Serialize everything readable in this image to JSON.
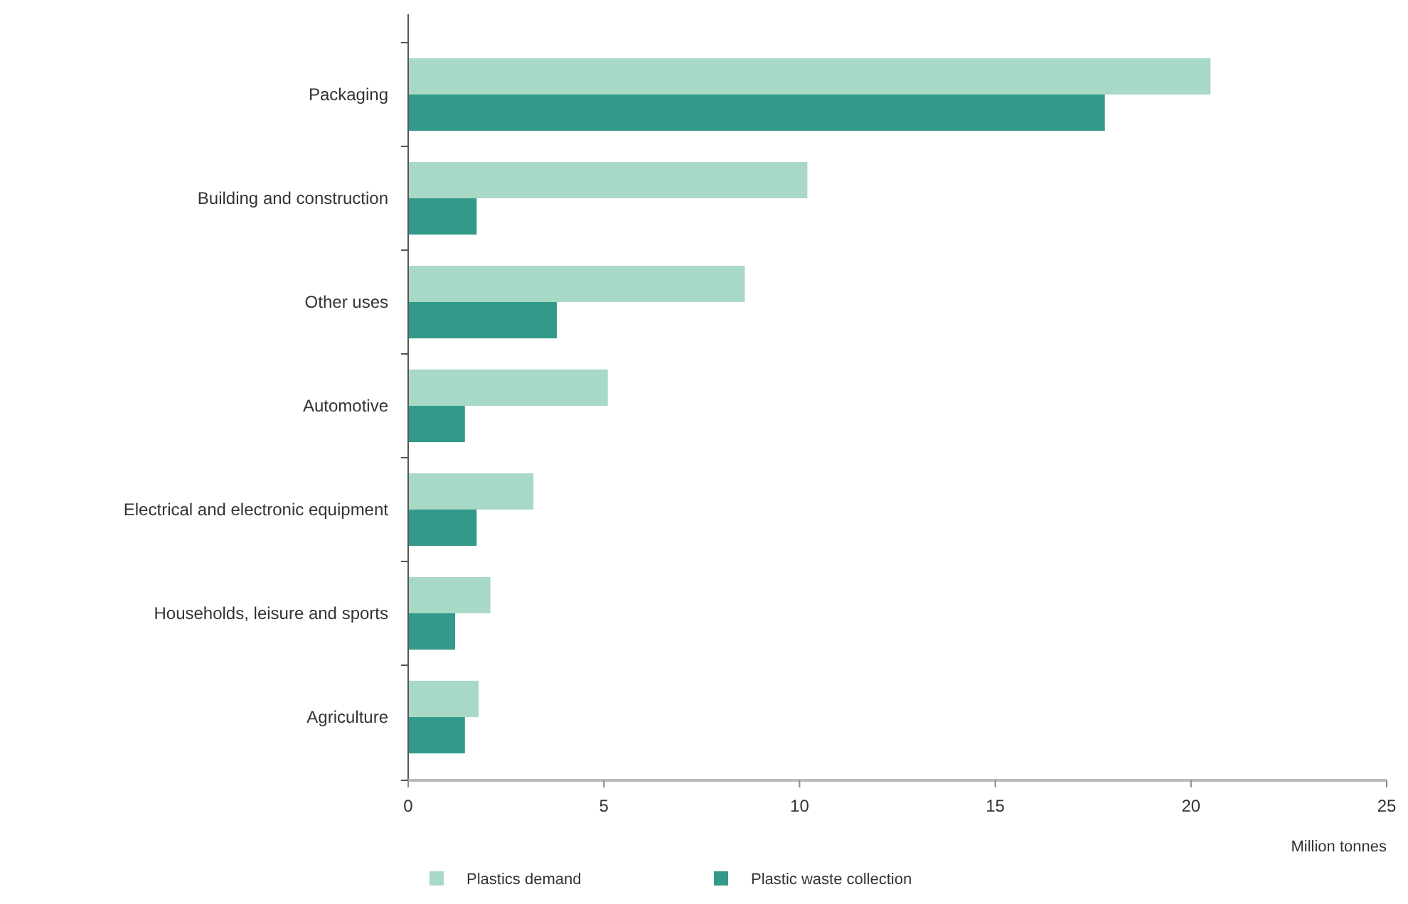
{
  "chart_data": {
    "type": "bar",
    "orientation": "horizontal",
    "xlabel": "Million tonnes",
    "categories": [
      "Packaging",
      "Building and construction",
      "Other uses",
      "Automotive",
      "Electrical and electronic equipment",
      "Households, leisure and sports",
      "Agriculture"
    ],
    "series": [
      {
        "name": "Plastics demand",
        "color": "#a8d8c6",
        "values": [
          20.5,
          10.2,
          8.6,
          5.1,
          3.2,
          2.1,
          1.8
        ]
      },
      {
        "name": "Plastic waste collection",
        "color": "#339a8a",
        "values": [
          17.8,
          1.75,
          3.8,
          1.45,
          1.75,
          1.2,
          1.45
        ]
      }
    ],
    "xlim": [
      0,
      25
    ],
    "xticks": [
      0,
      5,
      10,
      15,
      20,
      25
    ],
    "legend": "bottom left"
  }
}
